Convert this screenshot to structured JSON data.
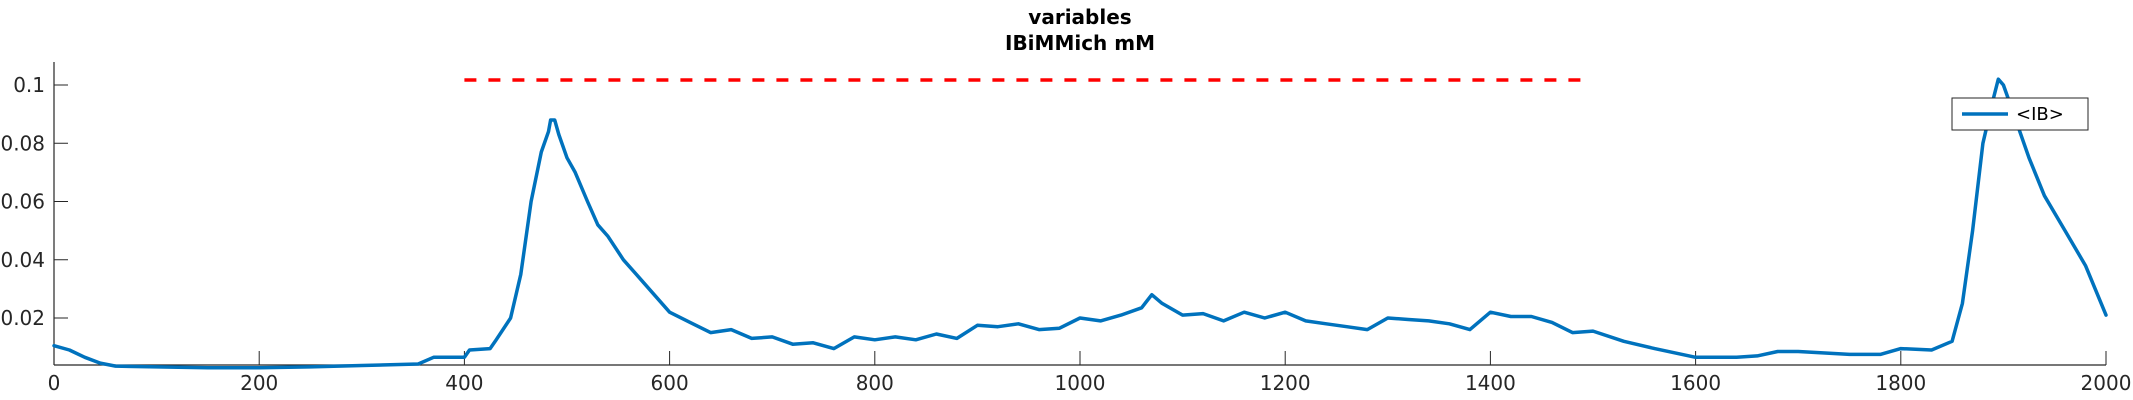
{
  "chart_data": {
    "type": "line",
    "title": [
      "variables",
      "IBiMMich mM"
    ],
    "xlabel": "",
    "ylabel": "",
    "xlim": [
      0,
      2000
    ],
    "ylim": [
      0.001,
      0.105
    ],
    "xticks": [
      0,
      200,
      400,
      600,
      800,
      1000,
      1200,
      1400,
      1600,
      1800,
      2000
    ],
    "xtick_labels": [
      "0",
      "200",
      "400",
      "600",
      "800",
      "1000",
      "1200",
      "1400",
      "1600",
      "1800",
      "2000"
    ],
    "yticks": [
      0.02,
      0.04,
      0.06,
      0.08,
      0.1
    ],
    "ytick_labels": [
      "0.02",
      "0.04",
      "0.06",
      "0.08",
      "0.1"
    ],
    "grid": false,
    "legend_position": "top-right",
    "colors": {
      "series": "#0072BD",
      "threshold": "#FF0000",
      "axis": "#262626"
    },
    "series": [
      {
        "name": "<IB>",
        "points": [
          [
            0,
            0.0105
          ],
          [
            15,
            0.009
          ],
          [
            30,
            0.0065
          ],
          [
            45,
            0.0045
          ],
          [
            60,
            0.0035
          ],
          [
            100,
            0.0032
          ],
          [
            150,
            0.0029
          ],
          [
            200,
            0.0029
          ],
          [
            250,
            0.0032
          ],
          [
            300,
            0.0037
          ],
          [
            355,
            0.0042
          ],
          [
            370,
            0.0065
          ],
          [
            400,
            0.0065
          ],
          [
            405,
            0.009
          ],
          [
            425,
            0.0095
          ],
          [
            430,
            0.012
          ],
          [
            445,
            0.02
          ],
          [
            455,
            0.035
          ],
          [
            465,
            0.06
          ],
          [
            475,
            0.077
          ],
          [
            482,
            0.084
          ],
          [
            484,
            0.088
          ],
          [
            488,
            0.088
          ],
          [
            492,
            0.083
          ],
          [
            500,
            0.075
          ],
          [
            508,
            0.07
          ],
          [
            520,
            0.06
          ],
          [
            530,
            0.052
          ],
          [
            540,
            0.048
          ],
          [
            555,
            0.04
          ],
          [
            570,
            0.034
          ],
          [
            585,
            0.028
          ],
          [
            600,
            0.022
          ],
          [
            620,
            0.0185
          ],
          [
            640,
            0.015
          ],
          [
            660,
            0.016
          ],
          [
            680,
            0.013
          ],
          [
            700,
            0.0135
          ],
          [
            720,
            0.011
          ],
          [
            740,
            0.0115
          ],
          [
            760,
            0.0095
          ],
          [
            780,
            0.0135
          ],
          [
            800,
            0.0125
          ],
          [
            820,
            0.0135
          ],
          [
            840,
            0.0125
          ],
          [
            860,
            0.0145
          ],
          [
            880,
            0.013
          ],
          [
            900,
            0.0175
          ],
          [
            920,
            0.017
          ],
          [
            940,
            0.018
          ],
          [
            960,
            0.016
          ],
          [
            980,
            0.0165
          ],
          [
            1000,
            0.02
          ],
          [
            1020,
            0.019
          ],
          [
            1040,
            0.021
          ],
          [
            1060,
            0.0235
          ],
          [
            1070,
            0.028
          ],
          [
            1080,
            0.025
          ],
          [
            1100,
            0.021
          ],
          [
            1120,
            0.0215
          ],
          [
            1140,
            0.019
          ],
          [
            1160,
            0.022
          ],
          [
            1180,
            0.02
          ],
          [
            1200,
            0.022
          ],
          [
            1220,
            0.019
          ],
          [
            1240,
            0.018
          ],
          [
            1260,
            0.017
          ],
          [
            1280,
            0.016
          ],
          [
            1300,
            0.02
          ],
          [
            1320,
            0.0195
          ],
          [
            1340,
            0.019
          ],
          [
            1360,
            0.018
          ],
          [
            1380,
            0.016
          ],
          [
            1400,
            0.022
          ],
          [
            1420,
            0.0205
          ],
          [
            1440,
            0.0205
          ],
          [
            1460,
            0.0185
          ],
          [
            1480,
            0.015
          ],
          [
            1500,
            0.0155
          ],
          [
            1530,
            0.012
          ],
          [
            1560,
            0.0095
          ],
          [
            1600,
            0.0065
          ],
          [
            1640,
            0.0065
          ],
          [
            1660,
            0.007
          ],
          [
            1680,
            0.0085
          ],
          [
            1700,
            0.0085
          ],
          [
            1750,
            0.0075
          ],
          [
            1780,
            0.0075
          ],
          [
            1800,
            0.0095
          ],
          [
            1830,
            0.009
          ],
          [
            1850,
            0.012
          ],
          [
            1860,
            0.025
          ],
          [
            1870,
            0.05
          ],
          [
            1880,
            0.08
          ],
          [
            1890,
            0.095
          ],
          [
            1895,
            0.102
          ],
          [
            1900,
            0.1
          ],
          [
            1910,
            0.09
          ],
          [
            1925,
            0.075
          ],
          [
            1940,
            0.062
          ],
          [
            1960,
            0.05
          ],
          [
            1980,
            0.038
          ],
          [
            2000,
            0.021
          ]
        ]
      }
    ],
    "threshold_line": {
      "y": 0.1,
      "x_range": [
        400,
        1490
      ],
      "style": "dashed"
    }
  }
}
